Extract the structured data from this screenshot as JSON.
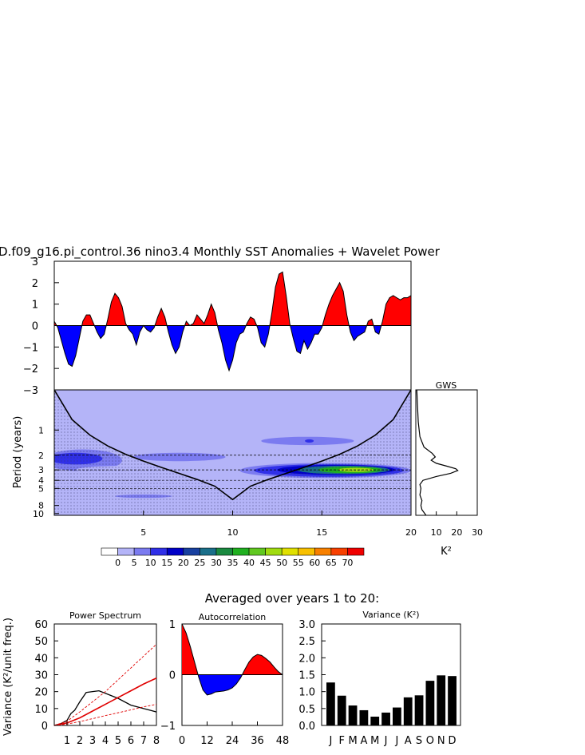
{
  "figure": {
    "title": "D.f09_g16.pi_control.36 nino3.4 Monthly SST Anomalies + Wavelet Power",
    "subtitle": "Averaged over years 1 to 20:"
  },
  "colors": {
    "positive": "#ff0000",
    "negative": "#0000ff",
    "coi_hatch": "#555599"
  },
  "chart_data": [
    {
      "id": "timeseries",
      "type": "area",
      "x": [
        0.0,
        0.2,
        0.4,
        0.6,
        0.8,
        1.0,
        1.2,
        1.4,
        1.6,
        1.8,
        2.0,
        2.2,
        2.4,
        2.6,
        2.8,
        3.0,
        3.2,
        3.4,
        3.6,
        3.8,
        4.0,
        4.2,
        4.4,
        4.6,
        4.8,
        5.0,
        5.2,
        5.4,
        5.6,
        5.8,
        6.0,
        6.2,
        6.4,
        6.6,
        6.8,
        7.0,
        7.2,
        7.4,
        7.6,
        7.8,
        8.0,
        8.2,
        8.4,
        8.6,
        8.8,
        9.0,
        9.2,
        9.4,
        9.6,
        9.8,
        10.0,
        10.2,
        10.4,
        10.6,
        10.8,
        11.0,
        11.2,
        11.4,
        11.6,
        11.8,
        12.0,
        12.2,
        12.4,
        12.6,
        12.8,
        13.0,
        13.2,
        13.4,
        13.6,
        13.8,
        14.0,
        14.2,
        14.4,
        14.6,
        14.8,
        15.0,
        15.2,
        15.4,
        15.6,
        15.8,
        16.0,
        16.2,
        16.4,
        16.6,
        16.8,
        17.0,
        17.2,
        17.4,
        17.6,
        17.8,
        18.0,
        18.2,
        18.4,
        18.6,
        18.8,
        19.0,
        19.2,
        19.4,
        19.6,
        19.8,
        20.0
      ],
      "y": [
        0.2,
        -0.1,
        -0.7,
        -1.3,
        -1.8,
        -1.9,
        -1.4,
        -0.6,
        0.2,
        0.5,
        0.5,
        0.1,
        -0.3,
        -0.6,
        -0.4,
        0.3,
        1.1,
        1.5,
        1.3,
        0.9,
        0.1,
        -0.2,
        -0.4,
        -0.9,
        -0.3,
        0.0,
        -0.2,
        -0.3,
        -0.1,
        0.4,
        0.8,
        0.4,
        -0.3,
        -0.9,
        -1.3,
        -1.0,
        -0.3,
        0.2,
        0.0,
        0.1,
        0.5,
        0.3,
        0.1,
        0.5,
        1.0,
        0.6,
        -0.2,
        -0.8,
        -1.6,
        -2.1,
        -1.6,
        -0.8,
        -0.4,
        -0.3,
        0.1,
        0.4,
        0.3,
        -0.1,
        -0.8,
        -1.0,
        -0.4,
        0.6,
        1.8,
        2.4,
        2.5,
        1.4,
        0.1,
        -0.6,
        -1.2,
        -1.3,
        -0.7,
        -1.1,
        -0.8,
        -0.4,
        -0.4,
        -0.1,
        0.5,
        1.0,
        1.4,
        1.7,
        2.0,
        1.6,
        0.5,
        -0.3,
        -0.7,
        -0.5,
        -0.4,
        -0.3,
        0.2,
        0.3,
        -0.3,
        -0.4,
        0.2,
        1.0,
        1.3,
        1.4,
        1.3,
        1.2,
        1.3,
        1.3,
        1.4
      ],
      "xlim": [
        0,
        20
      ],
      "ylim": [
        -3,
        3
      ],
      "yticks": [
        -3,
        -2,
        -1,
        0,
        1,
        2,
        3
      ]
    },
    {
      "id": "wavelet",
      "type": "heatmap",
      "ylabel": "Period (years)",
      "xlim": [
        0,
        20
      ],
      "xticks": [
        5,
        10,
        15,
        20
      ],
      "yticks": [
        1,
        2,
        3,
        4,
        5,
        8,
        10
      ],
      "ylim": [
        0.33,
        10.5
      ],
      "y_scale": "log",
      "dashed_periods": [
        2,
        3,
        4,
        5
      ],
      "coi": {
        "x": [
          0,
          1,
          2,
          3,
          4,
          5,
          6,
          7,
          8,
          9,
          10,
          11,
          12,
          13,
          14,
          15,
          16,
          17,
          18,
          19,
          20
        ],
        "period": [
          0.33,
          0.75,
          1.15,
          1.55,
          1.95,
          2.35,
          2.8,
          3.3,
          3.9,
          4.7,
          6.8,
          4.7,
          3.9,
          3.3,
          2.8,
          2.35,
          1.95,
          1.55,
          1.15,
          0.75,
          0.33
        ]
      },
      "levels": [
        0,
        5,
        10,
        15,
        20,
        25,
        30,
        35,
        40,
        45,
        50,
        55,
        60,
        65,
        70
      ],
      "level_colors": [
        "#ffffff",
        "#b4b4f8",
        "#7b7bf0",
        "#3030e8",
        "#0000c8",
        "#1840a0",
        "#1a6f8a",
        "#1a8a40",
        "#20b020",
        "#60c820",
        "#a0dc10",
        "#e0e000",
        "#f8c000",
        "#f88000",
        "#f84000",
        "#f00000"
      ],
      "blobs": [
        {
          "x": 15.2,
          "period": 3.05,
          "rx": 4.8,
          "rlogp": 0.09,
          "level": 10
        },
        {
          "x": 15.4,
          "period": 3.05,
          "rx": 4.2,
          "rlogp": 0.075,
          "level": 15
        },
        {
          "x": 15.8,
          "period": 3.0,
          "rx": 3.3,
          "rlogp": 0.06,
          "level": 20
        },
        {
          "x": 16.2,
          "period": 3.0,
          "rx": 2.6,
          "rlogp": 0.05,
          "level": 30
        },
        {
          "x": 16.6,
          "period": 3.0,
          "rx": 1.8,
          "rlogp": 0.04,
          "level": 40
        },
        {
          "x": 16.9,
          "period": 3.0,
          "rx": 1.0,
          "rlogp": 0.025,
          "level": 50
        },
        {
          "x": 1.6,
          "period": 2.3,
          "rx": 2.2,
          "rlogp": 0.13,
          "level": 10
        },
        {
          "x": 1.2,
          "period": 2.2,
          "rx": 1.5,
          "rlogp": 0.07,
          "level": 15
        },
        {
          "x": 7.0,
          "period": 2.1,
          "rx": 2.6,
          "rlogp": 0.05,
          "level": 10
        },
        {
          "x": 14.2,
          "period": 1.35,
          "rx": 2.6,
          "rlogp": 0.05,
          "level": 10
        },
        {
          "x": 14.3,
          "period": 1.35,
          "rx": 0.25,
          "rlogp": 0.02,
          "level": 15
        },
        {
          "x": 5.0,
          "period": 6.2,
          "rx": 1.6,
          "rlogp": 0.02,
          "level": 10
        },
        {
          "x": 4.0,
          "period": 3.0,
          "rx": 2.8,
          "rlogp": 0.05,
          "level": 0
        }
      ]
    },
    {
      "id": "gws",
      "type": "line",
      "title": "GWS",
      "xlabel": "K²",
      "xticks": [
        10,
        20,
        30
      ],
      "xlim": [
        0,
        30
      ],
      "period": [
        0.33,
        0.5,
        0.8,
        1.2,
        1.6,
        1.9,
        2.1,
        2.3,
        2.5,
        2.7,
        2.9,
        3.05,
        3.3,
        3.6,
        4.0,
        4.5,
        5.0,
        6.0,
        7.0,
        8.0,
        9.0,
        10.5
      ],
      "power": [
        0.5,
        0.8,
        1.2,
        2.0,
        4.0,
        8.0,
        9.5,
        7.5,
        10.0,
        15.0,
        19.5,
        20.5,
        17.0,
        10.0,
        3.5,
        2.0,
        2.5,
        2.0,
        3.0,
        2.5,
        3.0,
        5.0
      ]
    },
    {
      "id": "power_spectrum",
      "type": "line",
      "title": "Power Spectrum",
      "ylabel": "Variance (K²/unit freq.)",
      "xticks": [
        1,
        2,
        3,
        4,
        5,
        6,
        7,
        8
      ],
      "xlim": [
        0,
        8
      ],
      "ylim": [
        0,
        60
      ],
      "yticks": [
        0,
        10,
        20,
        30,
        40,
        50,
        60
      ],
      "series": [
        {
          "style": "solid-black",
          "x": [
            0,
            0.5,
            1,
            1.3,
            1.6,
            2,
            2.5,
            3,
            3.5,
            4,
            5,
            6,
            7,
            8
          ],
          "values": [
            0,
            1,
            3,
            7,
            9,
            14,
            19.5,
            20,
            20.5,
            19,
            16,
            12,
            10,
            8
          ]
        },
        {
          "style": "solid-red",
          "x": [
            0,
            1,
            2,
            3,
            4,
            5,
            6,
            7,
            8
          ],
          "values": [
            0,
            1.5,
            4.5,
            8.5,
            12.5,
            16.5,
            20.5,
            24.5,
            28
          ]
        },
        {
          "style": "dashed-red",
          "x": [
            0,
            1,
            2,
            3,
            4,
            5,
            6,
            7,
            8
          ],
          "values": [
            0,
            2.5,
            8,
            14,
            20,
            27,
            34,
            41,
            48
          ]
        },
        {
          "style": "dashed-red",
          "x": [
            0,
            1,
            2,
            3,
            4,
            5,
            6,
            7,
            8
          ],
          "values": [
            0,
            0.8,
            2.3,
            4,
            5.8,
            7.5,
            9.2,
            11,
            12.5
          ]
        }
      ]
    },
    {
      "id": "autocorrelation",
      "type": "area",
      "title": "Autocorrelation",
      "xticks": [
        0,
        12,
        24,
        36,
        48
      ],
      "xlim": [
        0,
        48
      ],
      "ylim": [
        -1,
        1
      ],
      "yticks": [
        -1,
        0,
        1
      ],
      "x": [
        0,
        2,
        4,
        6,
        8,
        10,
        12,
        14,
        16,
        18,
        20,
        22,
        24,
        26,
        28,
        30,
        32,
        34,
        36,
        38,
        40,
        42,
        44,
        46,
        48
      ],
      "y": [
        1.0,
        0.82,
        0.55,
        0.25,
        -0.05,
        -0.3,
        -0.4,
        -0.38,
        -0.34,
        -0.33,
        -0.32,
        -0.3,
        -0.26,
        -0.18,
        -0.06,
        0.1,
        0.25,
        0.35,
        0.4,
        0.38,
        0.32,
        0.25,
        0.15,
        0.06,
        0.0
      ]
    },
    {
      "id": "monthly_variance",
      "type": "bar",
      "title": "Variance (K²)",
      "categories": [
        "J",
        "F",
        "M",
        "A",
        "M",
        "J",
        "J",
        "A",
        "S",
        "O",
        "N",
        "D"
      ],
      "values": [
        1.27,
        0.88,
        0.59,
        0.45,
        0.26,
        0.38,
        0.53,
        0.83,
        0.89,
        1.32,
        1.48,
        1.46
      ],
      "ylim": [
        0,
        3.0
      ],
      "yticks": [
        "0.0",
        "0.5",
        "1.0",
        "1.5",
        "2.0",
        "2.5",
        "3.0"
      ]
    }
  ]
}
